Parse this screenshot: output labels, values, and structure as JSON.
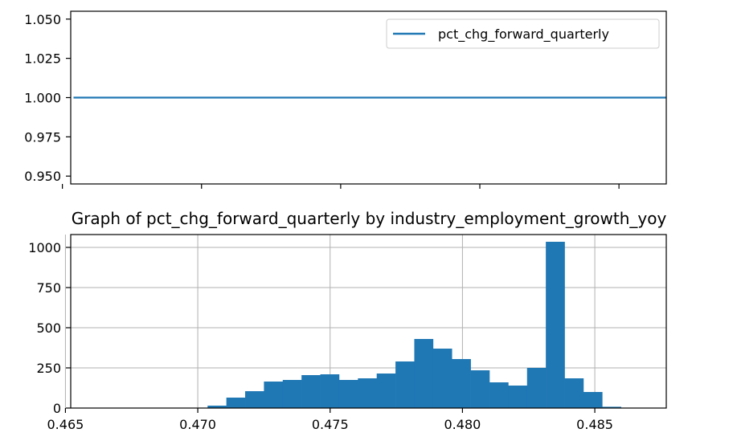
{
  "chart_data": [
    {
      "type": "line",
      "title": "",
      "xlabel": "",
      "ylabel": "",
      "x_range": [
        0.4653,
        0.4867
      ],
      "ylim": [
        0.945,
        1.055
      ],
      "y_ticks": [
        0.95,
        0.975,
        1.0,
        1.025,
        1.05
      ],
      "y_tick_labels": [
        "0.950",
        "0.975",
        "1.000",
        "1.025",
        "1.050"
      ],
      "x_ticks": [
        0.465,
        0.47,
        0.475,
        0.48,
        0.485
      ],
      "x_tick_labels_visible": false,
      "grid": false,
      "legend": {
        "position": "top-right",
        "entries": [
          "pct_chg_forward_quarterly"
        ]
      },
      "series": [
        {
          "name": "pct_chg_forward_quarterly",
          "color": "#1f77b4",
          "x": [
            0.4654,
            0.4867
          ],
          "y": [
            1.0,
            1.0
          ]
        }
      ]
    },
    {
      "type": "bar",
      "title": "Graph of pct_chg_forward_quarterly by industry_employment_growth_yoy",
      "xlabel": "",
      "ylabel": "",
      "xlim": [
        0.4652,
        0.4877
      ],
      "ylim": [
        0,
        1080
      ],
      "y_ticks": [
        0,
        250,
        500,
        750,
        1000
      ],
      "y_tick_labels": [
        "0",
        "250",
        "500",
        "750",
        "1000"
      ],
      "x_ticks": [
        0.465,
        0.47,
        0.475,
        0.48,
        0.485
      ],
      "x_tick_labels": [
        "0.465",
        "0.470",
        "0.475",
        "0.480",
        "0.485"
      ],
      "grid": true,
      "bar_color": "#1f77b4",
      "bin_edges": [
        0.4654,
        0.46611,
        0.46682,
        0.46753,
        0.46824,
        0.46895,
        0.46966,
        0.47037,
        0.47108,
        0.47179,
        0.4725,
        0.47321,
        0.47392,
        0.47463,
        0.47534,
        0.47605,
        0.47676,
        0.47747,
        0.47818,
        0.47889,
        0.4796,
        0.48031,
        0.48102,
        0.48173,
        0.48244,
        0.48315,
        0.48386,
        0.48457,
        0.48528,
        0.48599,
        0.4867
      ],
      "values": [
        1,
        1,
        1,
        1,
        1,
        1,
        1,
        15,
        65,
        105,
        165,
        175,
        205,
        210,
        175,
        185,
        215,
        290,
        430,
        370,
        305,
        235,
        160,
        140,
        250,
        1035,
        185,
        100,
        8,
        0
      ]
    }
  ]
}
